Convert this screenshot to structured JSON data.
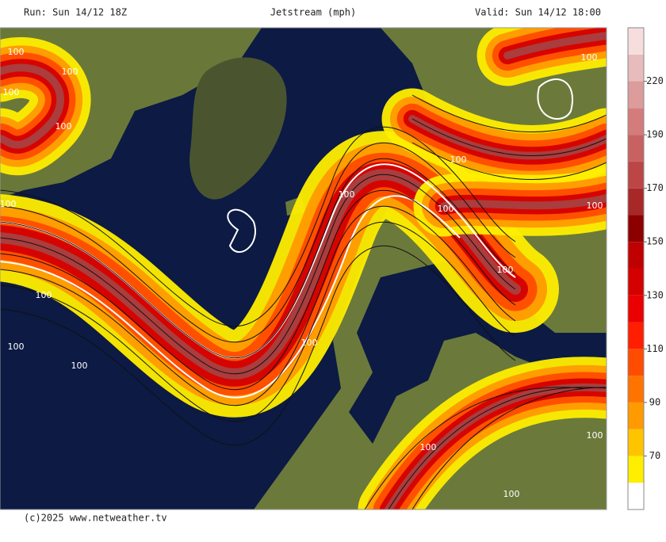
{
  "header": {
    "run": "Run: Sun 14/12 18Z",
    "title": "Jetstream (mph)",
    "valid": "Valid: Sun 14/12 18:00"
  },
  "footer": "(c)2025 www.netweather.tv",
  "contour_labels": [
    "100",
    "100",
    "100",
    "100",
    "100",
    "100",
    "100",
    "100",
    "100",
    "100",
    "100",
    "100",
    "100",
    "100",
    "100",
    "100",
    "100",
    "100"
  ],
  "colorbar": {
    "levels": [
      50,
      60,
      70,
      80,
      90,
      100,
      110,
      120,
      130,
      140,
      150,
      160,
      170,
      180,
      190,
      200,
      220,
      240,
      260
    ],
    "colors": [
      "#ffffff",
      "#ffee00",
      "#ffc400",
      "#ff9a00",
      "#ff7400",
      "#ff4c00",
      "#ff1e00",
      "#ea0000",
      "#d40000",
      "#c00000",
      "#8c0000",
      "#a82828",
      "#bc4646",
      "#c86262",
      "#d47c7c",
      "#dc9c9c",
      "#e8bcbc",
      "#f6dede"
    ],
    "ticks": [
      70,
      90,
      110,
      130,
      150,
      170,
      190,
      220
    ]
  }
}
